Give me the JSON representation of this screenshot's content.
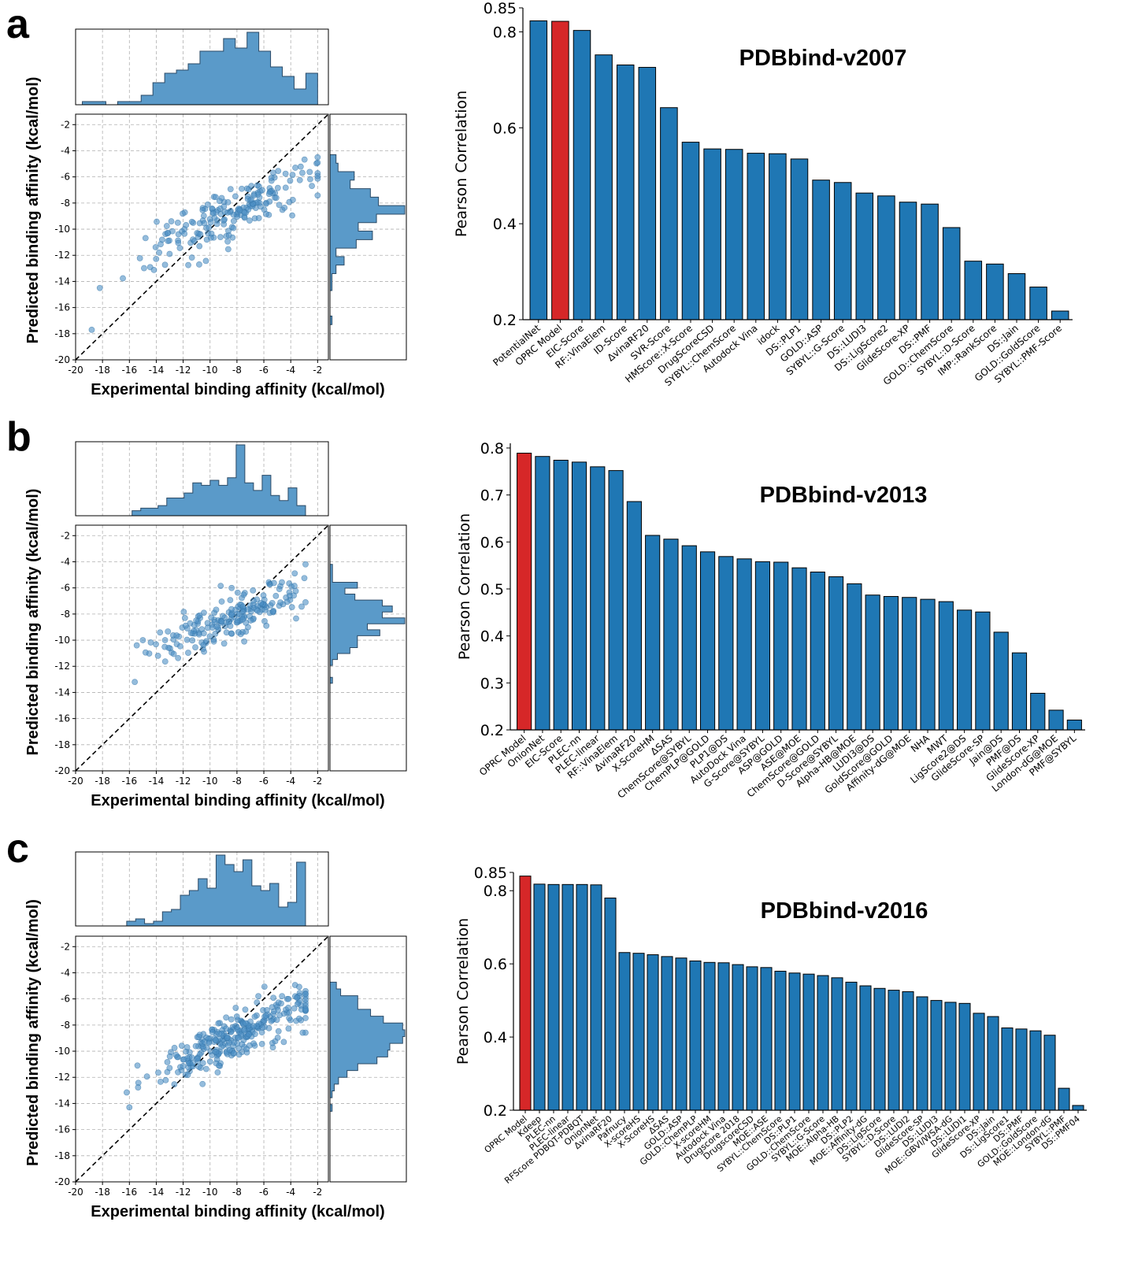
{
  "panels": [
    {
      "letter": "a",
      "scatter": {
        "xlabel": "Experimental binding affinity (kcal/mol)",
        "ylabel": "Predicted binding affinity (kcal/mol)",
        "xticks": [
          "-20",
          "-18",
          "-16",
          "-14",
          "-12",
          "-10",
          "-8",
          "-6",
          "-4",
          "-2"
        ],
        "yticks": [
          "-20",
          "-18",
          "-16",
          "-14",
          "-12",
          "-10",
          "-8",
          "-6",
          "-4",
          "-2"
        ]
      },
      "bar": {
        "title": "PDBbind-v2007",
        "ylabel": "Pearson Correlation",
        "yticks": [
          "0.2",
          "0.4",
          "0.6",
          "0.8",
          "0.85"
        ]
      }
    },
    {
      "letter": "b",
      "scatter": {
        "xlabel": "Experimental binding affinity (kcal/mol)",
        "ylabel": "Predicted binding affinity (kcal/mol)",
        "xticks": [
          "-20",
          "-18",
          "-16",
          "-14",
          "-12",
          "-10",
          "-8",
          "-6",
          "-4",
          "-2"
        ],
        "yticks": [
          "-20",
          "-18",
          "-16",
          "-14",
          "-12",
          "-10",
          "-8",
          "-6",
          "-4",
          "-2"
        ]
      },
      "bar": {
        "title": "PDBbind-v2013",
        "ylabel": "Pearson Correlation",
        "yticks": [
          "0.2",
          "0.3",
          "0.4",
          "0.5",
          "0.6",
          "0.7",
          "0.8"
        ]
      }
    },
    {
      "letter": "c",
      "scatter": {
        "xlabel": "Experimental binding affinity (kcal/mol)",
        "ylabel": "Predicted binding affinity (kcal/mol)",
        "xticks": [
          "-20",
          "-18",
          "-16",
          "-14",
          "-12",
          "-10",
          "-8",
          "-6",
          "-4",
          "-2"
        ],
        "yticks": [
          "-20",
          "-18",
          "-16",
          "-14",
          "-12",
          "-10",
          "-8",
          "-6",
          "-4",
          "-2"
        ]
      },
      "bar": {
        "title": "PDBbind-v2016",
        "ylabel": "Pearson Correlation",
        "yticks": [
          "0.2",
          "0.4",
          "0.6",
          "0.8",
          "0.85"
        ]
      }
    }
  ],
  "colors": {
    "bar": "#1f77b4",
    "highlight": "#d62728",
    "hist": "#5a9ac9",
    "scatter": "#4c8fc4"
  },
  "chart_data": [
    {
      "type": "bar",
      "title": "PDBbind-v2007",
      "ylabel": "Pearson Correlation",
      "ylim": [
        0.2,
        0.85
      ],
      "highlight": "OPRC Model",
      "categories": [
        "PotentialNet",
        "OPRC Model",
        "EIC-Score",
        "RF::VinaElem",
        "ID-Score",
        "ΔvinaRF20",
        "SVR-Score",
        "HMScore::X-Score",
        "DrugScoreCSD",
        "SYBYL::ChemScore",
        "Autodock Vina",
        "idock",
        "DS::PLP1",
        "GOLD::ASP",
        "SYBYL::G-Score",
        "DS::LUDI3",
        "DS::LigScore2",
        "GlideScore-XP",
        "DS::PMF",
        "GOLD::ChemScore",
        "SYBYL::D-Score",
        "IMP::RankScore",
        "DS::Jain",
        "GOLD::GoldScore",
        "SYBYL::PMF-Score"
      ],
      "values": [
        0.823,
        0.822,
        0.803,
        0.752,
        0.731,
        0.726,
        0.642,
        0.57,
        0.556,
        0.555,
        0.547,
        0.546,
        0.535,
        0.491,
        0.486,
        0.464,
        0.458,
        0.445,
        0.441,
        0.392,
        0.322,
        0.316,
        0.296,
        0.268,
        0.218
      ]
    },
    {
      "type": "bar",
      "title": "PDBbind-v2013",
      "ylabel": "Pearson Correlation",
      "ylim": [
        0.2,
        0.81
      ],
      "highlight": "OPRC Model",
      "categories": [
        "OPRC Model",
        "OnionNet",
        "EIC-Score",
        "PLEC-nn",
        "PLEC-linear",
        "RF::VinaElem",
        "ΔvinaRF20",
        "X-ScoreHM",
        "ΔSAS",
        "ChemScore@SYBYL",
        "ChemPLP@GOLD",
        "PLP1@DS",
        "AutoDock Vina",
        "G-Score@SYBYL",
        "ASP@GOLD",
        "ASE@MOE",
        "ChemScore@GOLD",
        "D-Score@SYBYL",
        "Alpha-HB@MOE",
        "LUDI3@DS",
        "GoldScore@GOLD",
        "Affinity-dG@MOE",
        "NHA",
        "MWT",
        "LigScore2@DS",
        "GlideScore-SP",
        "Jain@DS",
        "PMF@DS",
        "GlideScore-XP",
        "London-dG@MOE",
        "PMF@SYBYL"
      ],
      "values": [
        0.789,
        0.782,
        0.774,
        0.77,
        0.76,
        0.752,
        0.686,
        0.614,
        0.606,
        0.592,
        0.579,
        0.569,
        0.564,
        0.558,
        0.557,
        0.545,
        0.536,
        0.526,
        0.511,
        0.487,
        0.484,
        0.482,
        0.478,
        0.473,
        0.455,
        0.451,
        0.408,
        0.364,
        0.278,
        0.242,
        0.221
      ]
    },
    {
      "type": "bar",
      "title": "PDBbind-v2016",
      "ylabel": "Pearson Correlation",
      "ylim": [
        0.2,
        0.85
      ],
      "highlight": "OPRC Model",
      "categories": [
        "OPRC Model",
        "Kdeep",
        "PLEC-nn",
        "PLEC-linear",
        "RFScore PDBQT-PDBQT",
        "OnionNet",
        "ΔvinaRF20",
        "Pafnucy",
        "X-scoreHS",
        "X-ScoreHS",
        "ΔSAS",
        "GOLD::ASP",
        "GOLD::ChemPLP",
        "X-scoreHM",
        "Autodock Vina",
        "Drugscore 2018",
        "DrugscoreCSD",
        "MOE::ASE",
        "SYBYL::ChemScore",
        "DS::PLP1",
        "GOLD::ChemScore",
        "SYBYL::G-Score",
        "MOE::Alpha-HB",
        "DS::PLP2",
        "MOE::Affinity-dG",
        "DS::LigScore",
        "SYBYL::D-Score",
        "DS::LUDI2",
        "GlideScore-SP",
        "DS::LUDI3",
        "MOE::GBVI/WSA-dG",
        "DS::LUDI1",
        "GlideScore-XP",
        "DS::Jain",
        "DS::LigScore1",
        "DS::PMF",
        "GOLD::GoldScore",
        "MOE::London-dG",
        "SYBYL::PMF",
        "DS::PMF04"
      ],
      "values": [
        0.84,
        0.818,
        0.817,
        0.817,
        0.817,
        0.816,
        0.78,
        0.631,
        0.629,
        0.625,
        0.62,
        0.616,
        0.608,
        0.604,
        0.603,
        0.598,
        0.592,
        0.59,
        0.58,
        0.575,
        0.572,
        0.568,
        0.562,
        0.55,
        0.54,
        0.533,
        0.528,
        0.524,
        0.51,
        0.5,
        0.495,
        0.492,
        0.465,
        0.456,
        0.425,
        0.422,
        0.417,
        0.405,
        0.26,
        0.213
      ]
    },
    {
      "type": "scatter",
      "name": "panel-a-scatter",
      "xlabel": "Experimental binding affinity (kcal/mol)",
      "ylabel": "Predicted binding affinity (kcal/mol)",
      "xlim": [
        -20,
        -1.2
      ],
      "ylim": [
        -20,
        -1.2
      ],
      "n_points": 195,
      "seed": 7,
      "x_range": [
        -19,
        -2
      ],
      "x_center": -8.5,
      "x_spread": 3.2,
      "y_range": [
        -18,
        -4.5
      ],
      "slope": 0.45,
      "intercept": -5.0,
      "noise": 1.0,
      "hist_x_range": [
        -19.5,
        -2
      ],
      "hist_y_range": [
        -17.3,
        -4.3
      ]
    },
    {
      "type": "scatter",
      "name": "panel-b-scatter",
      "xlabel": "Experimental binding affinity (kcal/mol)",
      "ylabel": "Predicted binding affinity (kcal/mol)",
      "xlim": [
        -20,
        -1.2
      ],
      "ylim": [
        -20,
        -1.2
      ],
      "n_points": 195,
      "seed": 13,
      "x_range": [
        -15.8,
        -2.9
      ],
      "x_center": -8.3,
      "x_spread": 3.1,
      "y_range": [
        -13.5,
        -4.2
      ],
      "slope": 0.42,
      "intercept": -4.8,
      "noise": 0.85,
      "hist_x_range": [
        -15.8,
        -2.9
      ],
      "hist_y_range": [
        -13.3,
        -4.2
      ]
    },
    {
      "type": "scatter",
      "name": "panel-c-scatter",
      "xlabel": "Experimental binding affinity (kcal/mol)",
      "ylabel": "Predicted binding affinity (kcal/mol)",
      "xlim": [
        -20,
        -1.2
      ],
      "ylim": [
        -20,
        -1.2
      ],
      "n_points": 285,
      "seed": 29,
      "x_range": [
        -16.2,
        -2.9
      ],
      "x_center": -8.5,
      "x_spread": 3.0,
      "y_range": [
        -14.6,
        -4.2
      ],
      "slope": 0.47,
      "intercept": -5.0,
      "noise": 0.85,
      "hist_x_range": [
        -16.2,
        -2.9
      ],
      "hist_y_range": [
        -14.6,
        -4.2
      ]
    }
  ]
}
